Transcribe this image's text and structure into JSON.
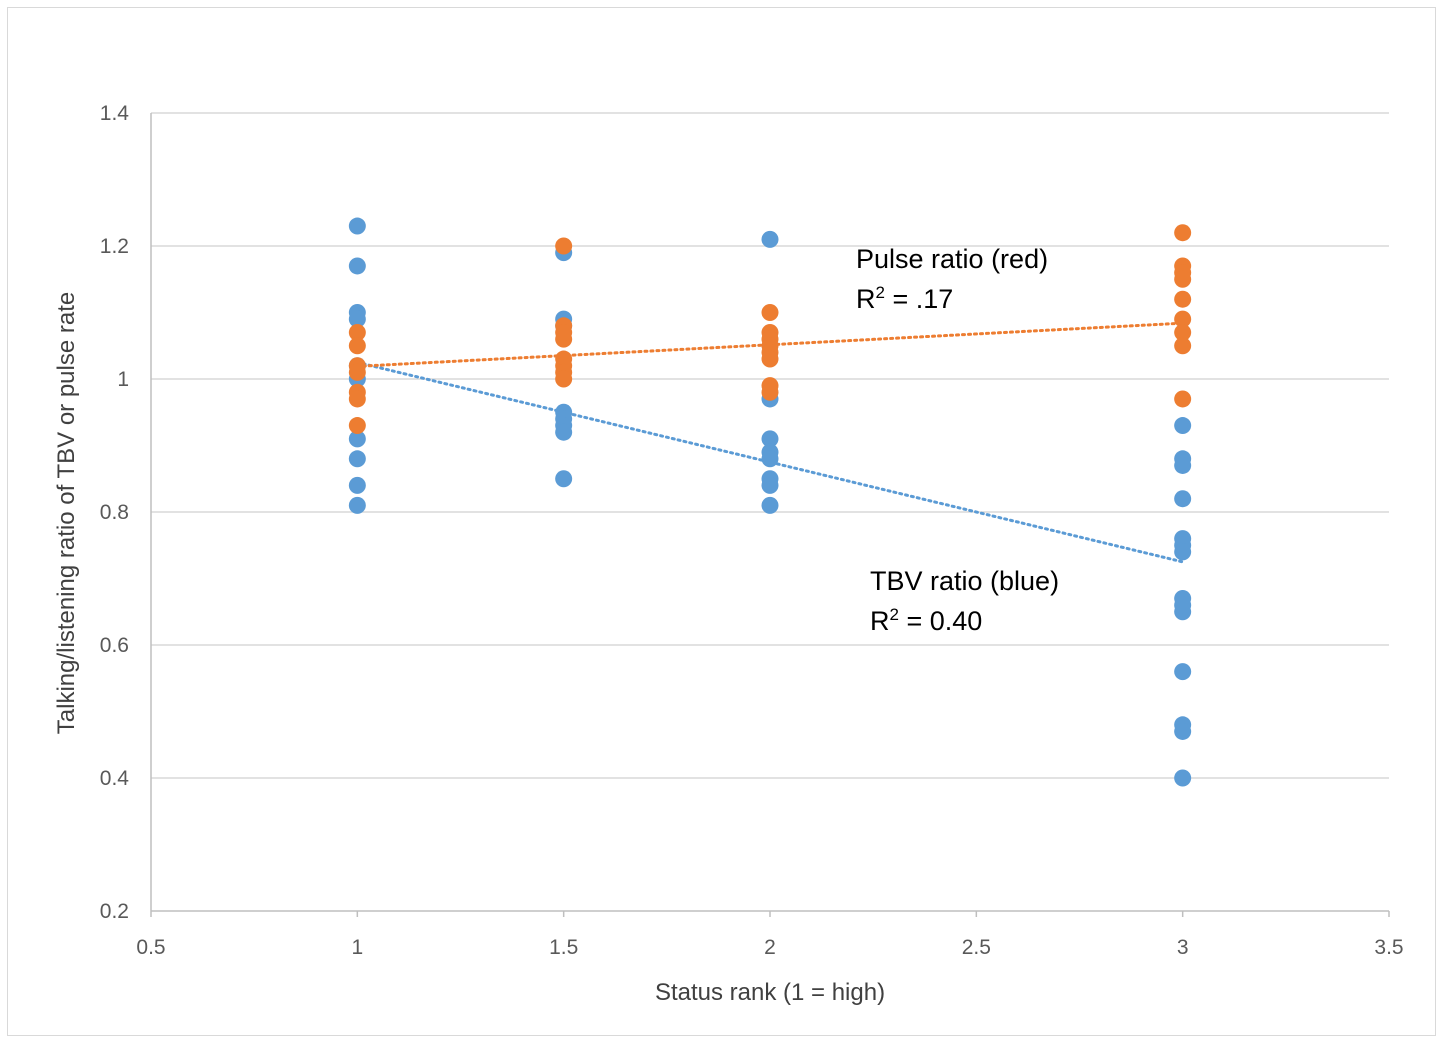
{
  "chart_data": {
    "type": "scatter",
    "title": "",
    "xlabel": "Status rank (1 = high)",
    "ylabel": "Talking/listening ratio of TBV or pulse rate",
    "xlim": [
      0.5,
      3.5
    ],
    "ylim": [
      0.2,
      1.4
    ],
    "x_ticks": [
      "0.5",
      "1",
      "1.5",
      "2",
      "2.5",
      "3",
      "3.5"
    ],
    "y_ticks": [
      "0.2",
      "0.4",
      "0.6",
      "0.8",
      "1",
      "1.2",
      "1.4"
    ],
    "grid": true,
    "legend": "none",
    "series": [
      {
        "color": "#5b9bd5",
        "x": [
          1,
          1,
          1,
          1,
          1,
          1,
          1,
          1,
          1,
          1,
          1.5,
          1.5,
          1.5,
          1.5,
          1.5,
          1.5,
          1.5,
          1.5,
          2,
          2,
          2,
          2,
          2,
          2,
          2,
          2,
          3,
          3,
          3,
          3,
          3,
          3,
          3,
          3,
          3,
          3,
          3,
          3,
          3,
          3
        ],
        "y": [
          1.23,
          1.17,
          1.1,
          1.09,
          1.02,
          1.0,
          0.91,
          0.88,
          0.84,
          0.81,
          1.19,
          1.09,
          0.95,
          0.94,
          0.93,
          0.92,
          0.85,
          1.08,
          1.21,
          0.97,
          0.91,
          0.89,
          0.88,
          0.85,
          0.84,
          0.81,
          0.65,
          0.93,
          0.88,
          0.87,
          0.82,
          0.76,
          0.75,
          0.74,
          0.67,
          0.66,
          0.56,
          0.48,
          0.47,
          0.4
        ]
      },
      {
        "color": "#ed7d31",
        "x": [
          1,
          1,
          1,
          1,
          1,
          1,
          1,
          1.5,
          1.5,
          1.5,
          1.5,
          1.5,
          1.5,
          1.5,
          1.5,
          2,
          2,
          2,
          2,
          2,
          2,
          2,
          2,
          3,
          3,
          3,
          3,
          3,
          3,
          3,
          3,
          3
        ],
        "y": [
          1.07,
          1.05,
          1.02,
          1.01,
          0.98,
          0.97,
          0.93,
          1.2,
          1.08,
          1.06,
          1.03,
          1.02,
          1.01,
          1.0,
          1.07,
          1.1,
          1.07,
          1.06,
          1.05,
          1.04,
          1.03,
          0.99,
          0.98,
          1.22,
          1.17,
          1.16,
          1.15,
          1.12,
          1.09,
          1.07,
          1.05,
          0.97
        ]
      }
    ],
    "trendlines": [
      {
        "series": 0,
        "color": "#5b9bd5",
        "x": [
          1,
          3
        ],
        "y": [
          1.025,
          0.725
        ]
      },
      {
        "series": 1,
        "color": "#ed7d31",
        "x": [
          1,
          3
        ],
        "y": [
          1.019,
          1.084
        ]
      }
    ],
    "annotations": {
      "pulse": {
        "label": "Pulse ratio (red)",
        "r2_prefix": "R",
        "r2_sup": "2",
        "r2_value": " = .17"
      },
      "tbv": {
        "label": "TBV ratio (blue)",
        "r2_prefix": "R",
        "r2_sup": "2",
        "r2_value": " = 0.40"
      }
    }
  }
}
